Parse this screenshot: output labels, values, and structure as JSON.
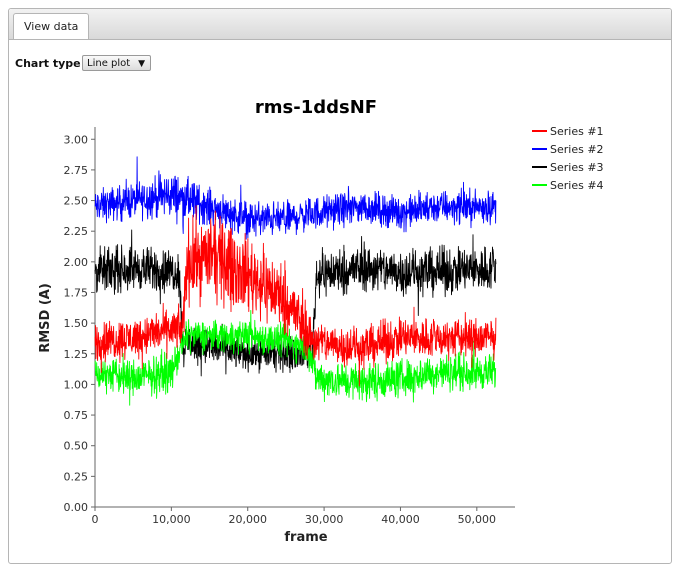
{
  "tabs": [
    {
      "label": "View data",
      "active": true
    }
  ],
  "controls": {
    "chart_type_label": "Chart type",
    "chart_type_value": "Line plot"
  },
  "chart_data": {
    "type": "line",
    "title": "rms-1ddsNF",
    "xlabel": "frame",
    "ylabel": "RMSD (A)",
    "xlim": [
      0,
      55000
    ],
    "ylim": [
      0,
      3.1
    ],
    "x_ticks": [
      "0",
      "10,000",
      "20,000",
      "30,000",
      "40,000",
      "50,000"
    ],
    "y_ticks": [
      "0.00",
      "0.25",
      "0.50",
      "0.75",
      "1.00",
      "1.25",
      "1.50",
      "1.75",
      "2.00",
      "2.25",
      "2.50",
      "2.75",
      "3.00"
    ],
    "legend_position": "top-right",
    "grid": false,
    "series": [
      {
        "name": "Series #1",
        "color": "#ff0000",
        "x": [
          0,
          5000,
          10000,
          11500,
          12000,
          15000,
          20000,
          25000,
          28000,
          29000,
          35000,
          40000,
          45000,
          52500
        ],
        "values": [
          1.35,
          1.38,
          1.45,
          1.45,
          2.0,
          2.05,
          1.9,
          1.7,
          1.4,
          1.35,
          1.3,
          1.38,
          1.38,
          1.38
        ],
        "spread": [
          0.15,
          0.15,
          0.15,
          0.15,
          0.3,
          0.3,
          0.28,
          0.25,
          0.18,
          0.15,
          0.15,
          0.15,
          0.15,
          0.15
        ]
      },
      {
        "name": "Series #2",
        "color": "#0000ff",
        "x": [
          0,
          5000,
          10000,
          15000,
          20000,
          25000,
          29000,
          35000,
          40000,
          45000,
          52500
        ],
        "values": [
          2.45,
          2.5,
          2.55,
          2.45,
          2.35,
          2.35,
          2.4,
          2.45,
          2.4,
          2.45,
          2.45
        ],
        "spread": [
          0.12,
          0.13,
          0.17,
          0.13,
          0.13,
          0.12,
          0.12,
          0.12,
          0.12,
          0.12,
          0.12
        ]
      },
      {
        "name": "Series #3",
        "color": "#000000",
        "x": [
          0,
          5000,
          11000,
          11500,
          12000,
          20000,
          25000,
          28500,
          29000,
          35000,
          40000,
          45000,
          52500
        ],
        "values": [
          1.92,
          1.95,
          1.92,
          1.3,
          1.35,
          1.25,
          1.25,
          1.3,
          1.9,
          1.95,
          1.92,
          1.92,
          1.95
        ],
        "spread": [
          0.16,
          0.16,
          0.16,
          0.15,
          0.15,
          0.12,
          0.12,
          0.15,
          0.17,
          0.17,
          0.17,
          0.17,
          0.17
        ]
      },
      {
        "name": "Series #4",
        "color": "#00ff00",
        "x": [
          0,
          5000,
          10000,
          12000,
          20000,
          25000,
          28000,
          29000,
          35000,
          40000,
          45000,
          52500
        ],
        "values": [
          1.1,
          1.05,
          1.1,
          1.4,
          1.4,
          1.35,
          1.3,
          1.05,
          1.02,
          1.05,
          1.1,
          1.1
        ],
        "spread": [
          0.13,
          0.14,
          0.14,
          0.1,
          0.12,
          0.12,
          0.12,
          0.14,
          0.14,
          0.14,
          0.13,
          0.13
        ]
      }
    ]
  }
}
